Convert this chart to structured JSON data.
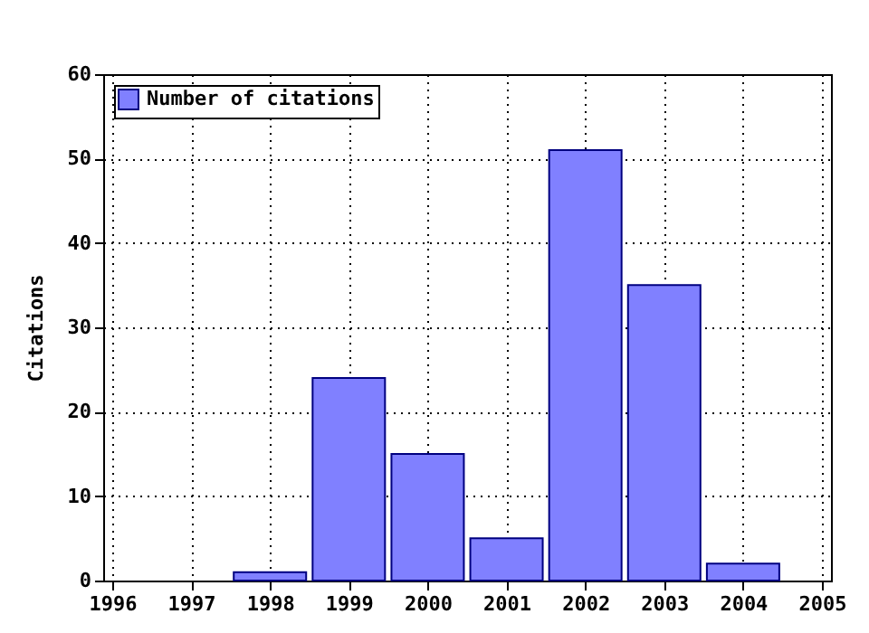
{
  "chart_data": {
    "type": "bar",
    "ylabel": "Citations",
    "x": [
      1998,
      1999,
      2000,
      2001,
      2002,
      2003,
      2004
    ],
    "series": [
      {
        "name": "Number of citations",
        "color": "#8080ff",
        "values": [
          1,
          24,
          15,
          5,
          51,
          35,
          2
        ]
      }
    ],
    "xlim": [
      1996,
      2005
    ],
    "xticks": [
      1996,
      1997,
      1998,
      1999,
      2000,
      2001,
      2002,
      2003,
      2004,
      2005
    ],
    "ylim": [
      0,
      60
    ],
    "yticks": [
      0,
      10,
      20,
      30,
      40,
      50,
      60
    ],
    "grid": true,
    "legend": "top left"
  }
}
